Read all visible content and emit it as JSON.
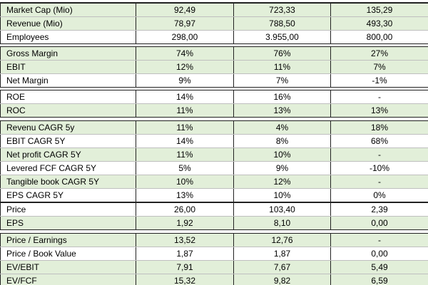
{
  "blocks": [
    {
      "rows": [
        {
          "label": "Market Cap (Mio)",
          "v": [
            "92,49",
            "723,33",
            "135,29"
          ],
          "bg": "green"
        },
        {
          "label": "Revenue (Mio)",
          "v": [
            "78,97",
            "788,50",
            "493,30"
          ],
          "bg": "green"
        },
        {
          "label": "Employees",
          "v": [
            "298,00",
            "3.955,00",
            "800,00"
          ],
          "bg": "white"
        }
      ]
    },
    {
      "rows": [
        {
          "label": "Gross Margin",
          "v": [
            "74%",
            "76%",
            "27%"
          ],
          "bg": "green"
        },
        {
          "label": "EBIT",
          "v": [
            "12%",
            "11%",
            "7%"
          ],
          "bg": "green"
        },
        {
          "label": "Net Margin",
          "v": [
            "9%",
            "7%",
            "-1%"
          ],
          "bg": "white"
        }
      ]
    },
    {
      "rows": [
        {
          "label": "ROE",
          "v": [
            "14%",
            "16%",
            "-"
          ],
          "bg": "white"
        },
        {
          "label": "ROC",
          "v": [
            "11%",
            "13%",
            "13%"
          ],
          "bg": "green"
        }
      ]
    },
    {
      "rows": [
        {
          "label": "Revenu CAGR 5y",
          "v": [
            "11%",
            "4%",
            "18%"
          ],
          "bg": "green"
        },
        {
          "label": "EBIT CAGR 5Y",
          "v": [
            "14%",
            "8%",
            "68%"
          ],
          "bg": "white"
        },
        {
          "label": "Net profit CAGR 5Y",
          "v": [
            "11%",
            "10%",
            "-"
          ],
          "bg": "green"
        },
        {
          "label": "Levered FCF CAGR 5Y",
          "v": [
            "5%",
            "9%",
            "-10%"
          ],
          "bg": "white"
        },
        {
          "label": "Tangible book CAGR 5Y",
          "v": [
            "10%",
            "12%",
            "-"
          ],
          "bg": "green"
        },
        {
          "label": "EPS CAGR 5Y",
          "v": [
            "13%",
            "10%",
            "0%"
          ],
          "bg": "white"
        }
      ]
    },
    {
      "rows": [
        {
          "label": "Price",
          "v": [
            "26,00",
            "103,40",
            "2,39"
          ],
          "bg": "white"
        },
        {
          "label": "EPS",
          "v": [
            "1,92",
            "8,10",
            "0,00"
          ],
          "bg": "green"
        }
      ]
    },
    {
      "rows": [
        {
          "label": "Price / Earnings",
          "v": [
            "13,52",
            "12,76",
            "-"
          ],
          "bg": "green"
        },
        {
          "label": "Price / Book Value",
          "v": [
            "1,87",
            "1,87",
            "0,00"
          ],
          "bg": "white"
        },
        {
          "label": "EV/EBIT",
          "v": [
            "7,91",
            "7,67",
            "5,49"
          ],
          "bg": "green"
        },
        {
          "label": "EV/FCF",
          "v": [
            "15,32",
            "9,82",
            "6,59"
          ],
          "bg": "green"
        }
      ]
    }
  ]
}
